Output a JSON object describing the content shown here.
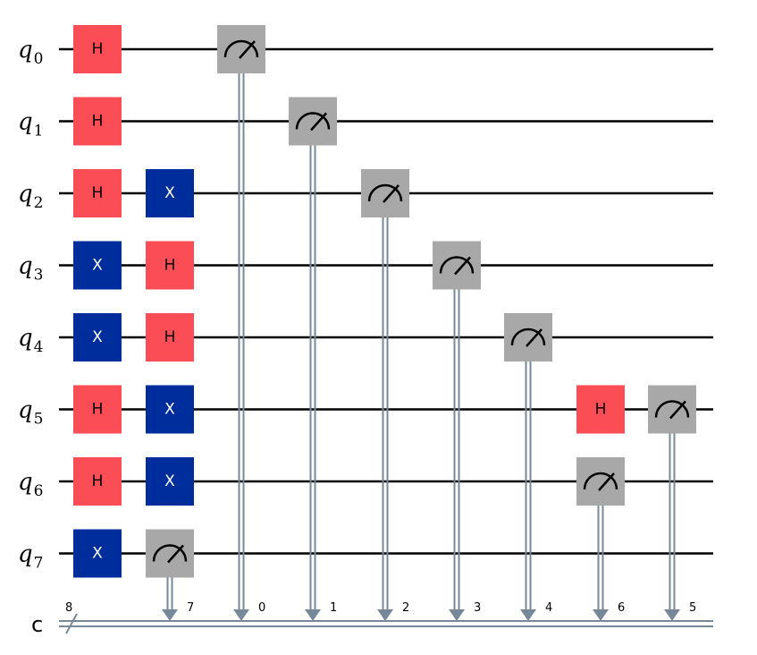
{
  "qubit_prefix": "q",
  "qubits": [
    "0",
    "1",
    "2",
    "3",
    "4",
    "5",
    "6",
    "7"
  ],
  "classical_register": {
    "name": "c",
    "size": "8"
  },
  "colors": {
    "h_gate": "#FA4D56",
    "x_gate": "#002D9C",
    "measure_gate": "#A8A8A8",
    "classical_wire": "#778899",
    "wire": "#000000",
    "gate_text_h": "#000000",
    "gate_text_x": "#ffffff"
  },
  "gates": [
    {
      "type": "H",
      "label": "H",
      "qubit": 0,
      "col": 0
    },
    {
      "type": "H",
      "label": "H",
      "qubit": 1,
      "col": 0
    },
    {
      "type": "H",
      "label": "H",
      "qubit": 2,
      "col": 0
    },
    {
      "type": "X",
      "label": "X",
      "qubit": 3,
      "col": 0
    },
    {
      "type": "X",
      "label": "X",
      "qubit": 4,
      "col": 0
    },
    {
      "type": "H",
      "label": "H",
      "qubit": 5,
      "col": 0
    },
    {
      "type": "H",
      "label": "H",
      "qubit": 6,
      "col": 0
    },
    {
      "type": "X",
      "label": "X",
      "qubit": 7,
      "col": 0
    },
    {
      "type": "X",
      "label": "X",
      "qubit": 2,
      "col": 1
    },
    {
      "type": "H",
      "label": "H",
      "qubit": 3,
      "col": 1
    },
    {
      "type": "H",
      "label": "H",
      "qubit": 4,
      "col": 1
    },
    {
      "type": "X",
      "label": "X",
      "qubit": 5,
      "col": 1
    },
    {
      "type": "X",
      "label": "X",
      "qubit": 6,
      "col": 1
    },
    {
      "type": "H",
      "label": "H",
      "qubit": 5,
      "col": 7
    }
  ],
  "measurements": [
    {
      "qubit": 7,
      "col": 1,
      "bit": "7"
    },
    {
      "qubit": 0,
      "col": 2,
      "bit": "0"
    },
    {
      "qubit": 1,
      "col": 3,
      "bit": "1"
    },
    {
      "qubit": 2,
      "col": 4,
      "bit": "2"
    },
    {
      "qubit": 3,
      "col": 5,
      "bit": "3"
    },
    {
      "qubit": 4,
      "col": 6,
      "bit": "4"
    },
    {
      "qubit": 6,
      "col": 7,
      "bit": "6"
    },
    {
      "qubit": 5,
      "col": 8,
      "bit": "5"
    }
  ]
}
